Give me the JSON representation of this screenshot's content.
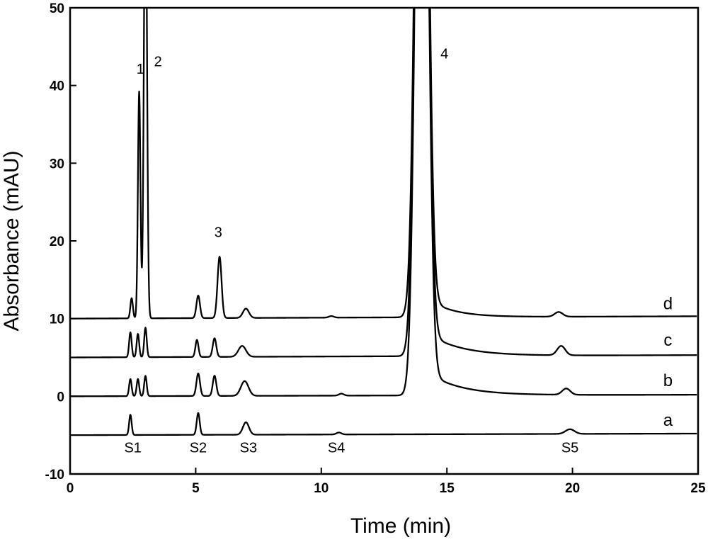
{
  "chart_data": {
    "type": "line",
    "xlabel": "Time (min)",
    "ylabel": "Absorbance (mAU)",
    "xlim": [
      0,
      25
    ],
    "ylim": [
      -10,
      50
    ],
    "xticks": [
      0,
      5,
      10,
      15,
      20,
      25
    ],
    "yticks": [
      -10,
      0,
      10,
      20,
      30,
      40,
      50
    ],
    "grid": false,
    "series": [
      {
        "name": "a",
        "baseline": -5,
        "end_level": -4.8,
        "peaks": [
          {
            "t": 2.4,
            "h": 2.6,
            "w": 0.05
          },
          {
            "t": 5.1,
            "h": 2.8,
            "w": 0.06
          },
          {
            "t": 7.0,
            "h": 1.6,
            "w": 0.12
          },
          {
            "t": 10.7,
            "h": 0.25,
            "w": 0.1
          },
          {
            "t": 19.9,
            "h": 0.6,
            "w": 0.18
          }
        ]
      },
      {
        "name": "b",
        "baseline": 0,
        "end_level": 0.2,
        "peaks": [
          {
            "t": 2.4,
            "h": 2.2,
            "w": 0.05
          },
          {
            "t": 2.7,
            "h": 2.2,
            "w": 0.05
          },
          {
            "t": 3.0,
            "h": 2.6,
            "w": 0.05
          },
          {
            "t": 5.1,
            "h": 2.9,
            "w": 0.07
          },
          {
            "t": 5.75,
            "h": 2.6,
            "w": 0.07
          },
          {
            "t": 6.95,
            "h": 1.9,
            "w": 0.15
          },
          {
            "t": 10.8,
            "h": 0.25,
            "w": 0.1
          },
          {
            "t": 14.0,
            "h": 120,
            "w": 0.22,
            "tail": 3.5,
            "tau": 1.3
          },
          {
            "t": 19.75,
            "h": 0.8,
            "w": 0.16
          }
        ]
      },
      {
        "name": "c",
        "baseline": 5,
        "end_level": 5.3,
        "peaks": [
          {
            "t": 2.4,
            "h": 3.2,
            "w": 0.05
          },
          {
            "t": 2.7,
            "h": 3.0,
            "w": 0.05
          },
          {
            "t": 3.0,
            "h": 3.8,
            "w": 0.05
          },
          {
            "t": 5.05,
            "h": 2.2,
            "w": 0.06
          },
          {
            "t": 5.75,
            "h": 2.4,
            "w": 0.07
          },
          {
            "t": 6.85,
            "h": 1.4,
            "w": 0.15
          },
          {
            "t": 14.0,
            "h": 120,
            "w": 0.22,
            "tail": 3.5,
            "tau": 1.3
          },
          {
            "t": 19.55,
            "h": 1.2,
            "w": 0.16
          }
        ]
      },
      {
        "name": "d",
        "baseline": 10,
        "end_level": 10.3,
        "peaks": [
          {
            "t": 2.45,
            "h": 2.6,
            "w": 0.05
          },
          {
            "t": 2.75,
            "h": 29.2,
            "w": 0.05
          },
          {
            "t": 3.0,
            "h": 60,
            "w": 0.06
          },
          {
            "t": 5.1,
            "h": 2.9,
            "w": 0.07
          },
          {
            "t": 5.95,
            "h": 7.9,
            "w": 0.08
          },
          {
            "t": 7.0,
            "h": 1.2,
            "w": 0.12
          },
          {
            "t": 10.4,
            "h": 0.2,
            "w": 0.1
          },
          {
            "t": 14.0,
            "h": 120,
            "w": 0.22,
            "tail": 3.0,
            "tau": 1.0
          },
          {
            "t": 19.45,
            "h": 0.6,
            "w": 0.16
          }
        ]
      }
    ],
    "peak_labels": [
      {
        "text": "1",
        "x": 2.8,
        "y": 41.5
      },
      {
        "text": "2",
        "x": 3.5,
        "y": 42.5
      },
      {
        "text": "3",
        "x": 5.9,
        "y": 20.5
      },
      {
        "text": "4",
        "x": 14.9,
        "y": 43.5
      }
    ],
    "standard_labels": [
      {
        "text": "S1",
        "x": 2.5,
        "y": -7.2
      },
      {
        "text": "S2",
        "x": 5.1,
        "y": -7.2
      },
      {
        "text": "S3",
        "x": 7.1,
        "y": -7.2
      },
      {
        "text": "S4",
        "x": 10.6,
        "y": -7.2
      },
      {
        "text": "S5",
        "x": 19.9,
        "y": -7.2
      }
    ],
    "trace_labels": [
      {
        "text": "d",
        "x": 23.8,
        "y": 11.2
      },
      {
        "text": "c",
        "x": 23.8,
        "y": 6.5
      },
      {
        "text": "b",
        "x": 23.8,
        "y": 1.3
      },
      {
        "text": "a",
        "x": 23.8,
        "y": -3.8
      }
    ]
  }
}
